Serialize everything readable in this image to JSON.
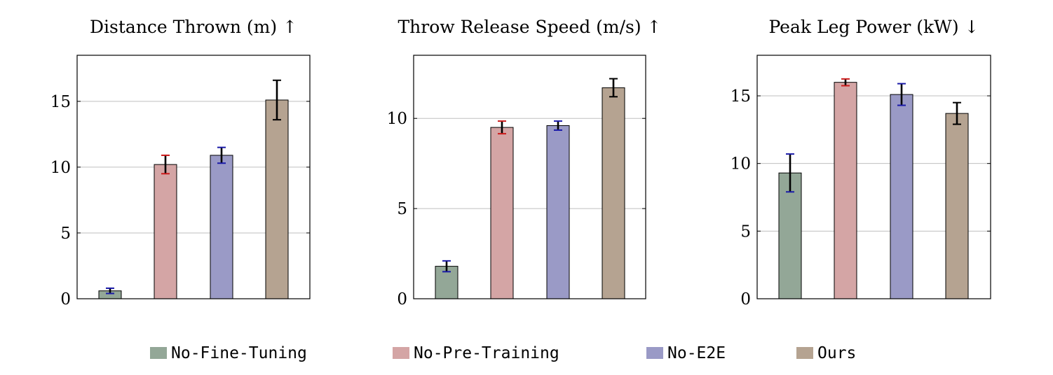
{
  "chart_data": [
    {
      "type": "bar",
      "title": "Distance Thrown (m) ↑",
      "categories": [
        "No-Fine-Tuning",
        "No-Pre-Training",
        "No-E2E",
        "Ours"
      ],
      "values": [
        0.6,
        10.2,
        10.9,
        15.1
      ],
      "errors": [
        0.2,
        0.7,
        0.6,
        1.5
      ],
      "ylim": [
        0,
        18.5
      ],
      "yticks": [
        0,
        5,
        10,
        15
      ],
      "grid": true
    },
    {
      "type": "bar",
      "title": "Throw Release Speed (m/s) ↑",
      "categories": [
        "No-Fine-Tuning",
        "No-Pre-Training",
        "No-E2E",
        "Ours"
      ],
      "values": [
        1.8,
        9.5,
        9.6,
        11.7
      ],
      "errors": [
        0.3,
        0.35,
        0.25,
        0.5
      ],
      "ylim": [
        0,
        13.5
      ],
      "yticks": [
        0,
        5,
        10
      ],
      "grid": true
    },
    {
      "type": "bar",
      "title": "Peak Leg Power (kW) ↓",
      "categories": [
        "No-Fine-Tuning",
        "No-Pre-Training",
        "No-E2E",
        "Ours"
      ],
      "values": [
        9.3,
        16.0,
        15.1,
        13.7
      ],
      "errors": [
        1.4,
        0.25,
        0.8,
        0.8
      ],
      "ylim": [
        0,
        18
      ],
      "yticks": [
        0,
        5,
        10,
        15
      ],
      "grid": true
    }
  ],
  "legend": {
    "placement": "bottom",
    "items": [
      {
        "label": "No-Fine-Tuning",
        "color": "#93a797"
      },
      {
        "label": "No-Pre-Training",
        "color": "#d4a5a5"
      },
      {
        "label": "No-E2E",
        "color": "#9a9ac6"
      },
      {
        "label": "Ours",
        "color": "#b5a391"
      }
    ]
  },
  "error_bar_accent_colors": [
    "#1a1aa8",
    "#cc1a1a",
    "#1a1aa8",
    "#000000"
  ]
}
